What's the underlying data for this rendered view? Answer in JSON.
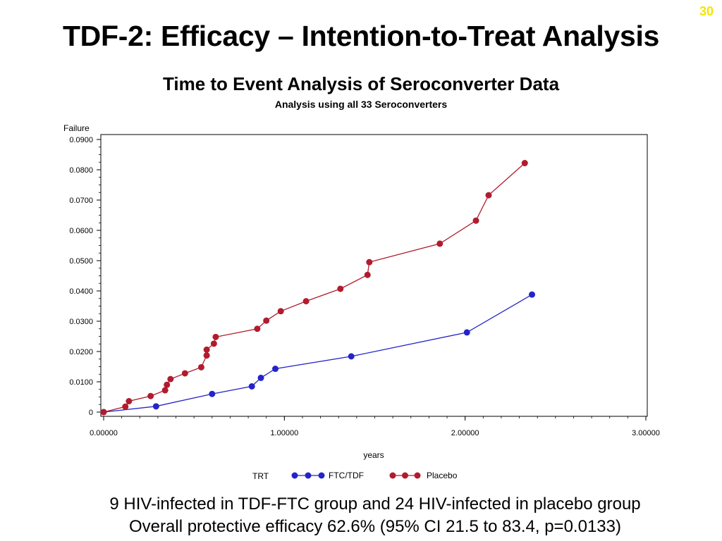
{
  "slide": {
    "number": "30",
    "title": "TDF-2: Efficacy – Intention-to-Treat Analysis",
    "notes": [
      "9 HIV-infected in TDF-FTC group and 24 HIV-infected in placebo group",
      "Overall protective efficacy 62.6% (95% CI 21.5 to 83.4, p=0.0133)"
    ]
  },
  "chart_data": {
    "type": "line",
    "title": "Time to Event Analysis of Seroconverter Data",
    "subtitle": "Analysis using all 33 Seroconverters",
    "xlabel": "years",
    "ylabel": "Failure",
    "xlim": [
      0,
      3
    ],
    "ylim": [
      0,
      0.09
    ],
    "x_ticks": [
      {
        "value": 0,
        "label": "0.00000"
      },
      {
        "value": 1,
        "label": "1.00000"
      },
      {
        "value": 2,
        "label": "2.00000"
      },
      {
        "value": 3,
        "label": "3.00000"
      }
    ],
    "y_ticks": [
      {
        "value": 0,
        "label": "0"
      },
      {
        "value": 0.01,
        "label": "0.0100"
      },
      {
        "value": 0.02,
        "label": "0.0200"
      },
      {
        "value": 0.03,
        "label": "0.0300"
      },
      {
        "value": 0.04,
        "label": "0.0400"
      },
      {
        "value": 0.05,
        "label": "0.0500"
      },
      {
        "value": 0.06,
        "label": "0.0600"
      },
      {
        "value": 0.07,
        "label": "0.0700"
      },
      {
        "value": 0.08,
        "label": "0.0800"
      },
      {
        "value": 0.09,
        "label": "0.0900"
      }
    ],
    "legend": {
      "title": "TRT",
      "position": "bottom"
    },
    "grid": false,
    "series": [
      {
        "name": "FTC/TDF",
        "color": "#2424c8",
        "points": [
          [
            0,
            0
          ],
          [
            0.29,
            0.0019
          ],
          [
            0.6,
            0.006
          ],
          [
            0.82,
            0.0085
          ],
          [
            0.87,
            0.0113
          ],
          [
            0.95,
            0.0143
          ],
          [
            1.37,
            0.0184
          ],
          [
            2.01,
            0.0263
          ],
          [
            2.37,
            0.0388
          ]
        ]
      },
      {
        "name": "Placebo",
        "color": "#b01c2e",
        "points": [
          [
            0,
            0
          ],
          [
            0.12,
            0.0018
          ],
          [
            0.14,
            0.0036
          ],
          [
            0.26,
            0.0053
          ],
          [
            0.34,
            0.0072
          ],
          [
            0.35,
            0.009
          ],
          [
            0.37,
            0.0109
          ],
          [
            0.45,
            0.0128
          ],
          [
            0.54,
            0.0148
          ],
          [
            0.57,
            0.0187
          ],
          [
            0.57,
            0.0206
          ],
          [
            0.61,
            0.0226
          ],
          [
            0.62,
            0.0248
          ],
          [
            0.85,
            0.0275
          ],
          [
            0.9,
            0.0302
          ],
          [
            0.98,
            0.0333
          ],
          [
            1.12,
            0.0366
          ],
          [
            1.31,
            0.0407
          ],
          [
            1.46,
            0.0453
          ],
          [
            1.47,
            0.0495
          ],
          [
            1.86,
            0.0556
          ],
          [
            2.06,
            0.0632
          ],
          [
            2.13,
            0.0716
          ],
          [
            2.33,
            0.0822
          ]
        ]
      }
    ]
  }
}
